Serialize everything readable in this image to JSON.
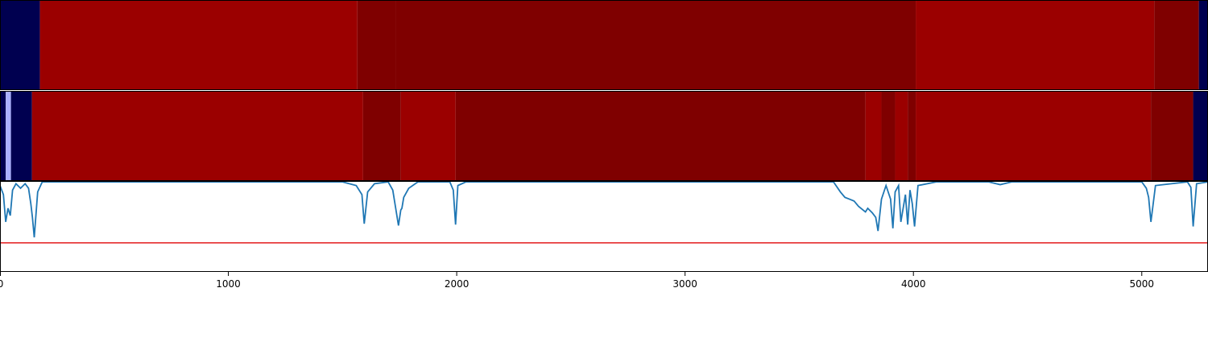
{
  "chart_data": {
    "type": "heatmap",
    "xlim": [
      0,
      5290
    ],
    "x_ticks": [
      0,
      1000,
      2000,
      3000,
      4000,
      5000
    ],
    "x_tick_labels": [
      "0",
      "1000",
      "2000",
      "3000",
      "4000",
      "5000"
    ],
    "colors": {
      "deep_red": "#7f0000",
      "red": "#9b0000",
      "navy": "#000050",
      "light_blue": "#aab0ff",
      "line": "#1f77b4",
      "threshold": "#e31a1c"
    },
    "tracks": [
      {
        "segments": [
          {
            "start": 0,
            "end": 175,
            "level": "navy"
          },
          {
            "start": 175,
            "end": 1565,
            "level": "red"
          },
          {
            "start": 1565,
            "end": 1735,
            "level": "deep_red"
          },
          {
            "start": 1735,
            "end": 4010,
            "level": "deep_red"
          },
          {
            "start": 4010,
            "end": 5055,
            "level": "red"
          },
          {
            "start": 5055,
            "end": 5250,
            "level": "deep_red"
          },
          {
            "start": 5250,
            "end": 5290,
            "level": "navy"
          }
        ]
      },
      {
        "segments": [
          {
            "start": 0,
            "end": 25,
            "level": "navy"
          },
          {
            "start": 25,
            "end": 48,
            "level": "light_blue"
          },
          {
            "start": 48,
            "end": 140,
            "level": "navy"
          },
          {
            "start": 140,
            "end": 1590,
            "level": "red"
          },
          {
            "start": 1590,
            "end": 1755,
            "level": "deep_red"
          },
          {
            "start": 1755,
            "end": 1995,
            "level": "red"
          },
          {
            "start": 1995,
            "end": 3790,
            "level": "deep_red"
          },
          {
            "start": 3790,
            "end": 3860,
            "level": "red"
          },
          {
            "start": 3860,
            "end": 3920,
            "level": "deep_red"
          },
          {
            "start": 3920,
            "end": 3975,
            "level": "red"
          },
          {
            "start": 3975,
            "end": 4010,
            "level": "deep_red"
          },
          {
            "start": 4010,
            "end": 5040,
            "level": "red"
          },
          {
            "start": 5040,
            "end": 5225,
            "level": "deep_red"
          },
          {
            "start": 5225,
            "end": 5290,
            "level": "navy"
          }
        ]
      }
    ],
    "line_panel": {
      "ylim": [
        0,
        1
      ],
      "threshold": 0.32,
      "series": {
        "x": [
          0,
          15,
          25,
          35,
          45,
          55,
          70,
          90,
          110,
          125,
          135,
          142,
          150,
          165,
          185,
          1500,
          1560,
          1585,
          1595,
          1610,
          1640,
          1700,
          1720,
          1745,
          1755,
          1760,
          1768,
          1790,
          1830,
          1970,
          1985,
          1995,
          2005,
          2040,
          3650,
          3680,
          3700,
          3720,
          3740,
          3760,
          3780,
          3790,
          3800,
          3820,
          3835,
          3845,
          3860,
          3880,
          3900,
          3910,
          3920,
          3935,
          3945,
          3955,
          3965,
          3975,
          3985,
          3995,
          4005,
          4020,
          4100,
          4330,
          4380,
          4430,
          5000,
          5020,
          5030,
          5040,
          5060,
          5200,
          5215,
          5225,
          5240,
          5290
        ],
        "y": [
          0.95,
          0.85,
          0.55,
          0.7,
          0.62,
          0.9,
          0.97,
          0.92,
          0.97,
          0.92,
          0.75,
          0.6,
          0.38,
          0.88,
          0.99,
          0.99,
          0.95,
          0.85,
          0.53,
          0.88,
          0.97,
          0.99,
          0.9,
          0.51,
          0.68,
          0.7,
          0.82,
          0.92,
          0.99,
          0.99,
          0.9,
          0.52,
          0.95,
          0.99,
          0.99,
          0.88,
          0.82,
          0.8,
          0.78,
          0.72,
          0.68,
          0.66,
          0.7,
          0.65,
          0.6,
          0.45,
          0.8,
          0.95,
          0.8,
          0.48,
          0.88,
          0.95,
          0.55,
          0.7,
          0.85,
          0.52,
          0.9,
          0.75,
          0.5,
          0.95,
          0.99,
          0.99,
          0.96,
          0.99,
          0.99,
          0.92,
          0.82,
          0.55,
          0.95,
          0.99,
          0.93,
          0.5,
          0.97,
          0.99
        ]
      }
    }
  }
}
